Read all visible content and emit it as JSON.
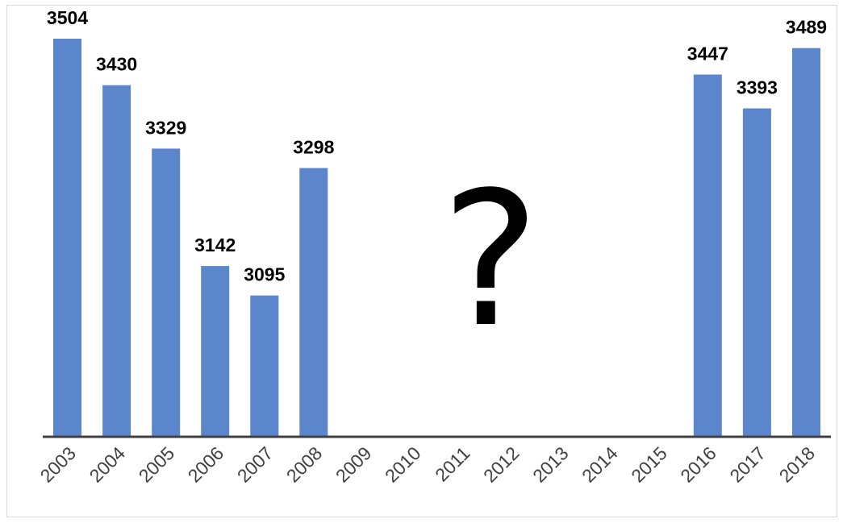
{
  "chart_data": {
    "type": "bar",
    "title": "",
    "xlabel": "",
    "ylabel": "",
    "categories": [
      "2003",
      "2004",
      "2005",
      "2006",
      "2007",
      "2008",
      "2009",
      "2010",
      "2011",
      "2012",
      "2013",
      "2014",
      "2015",
      "2016",
      "2017",
      "2018"
    ],
    "values": [
      3504,
      3430,
      3329,
      3142,
      3095,
      3298,
      null,
      null,
      null,
      null,
      null,
      null,
      null,
      3447,
      3393,
      3489
    ],
    "data_labels": [
      "3504",
      "3430",
      "3329",
      "3142",
      "3095",
      "3298",
      "",
      "",
      "",
      "",
      "",
      "",
      "",
      "3447",
      "3393",
      "3489"
    ],
    "ylim": [
      2870,
      3540
    ],
    "grid": false,
    "legend": "none",
    "annotation": "?",
    "bar_color": "#5B86CB",
    "axis_color": "#404040"
  }
}
